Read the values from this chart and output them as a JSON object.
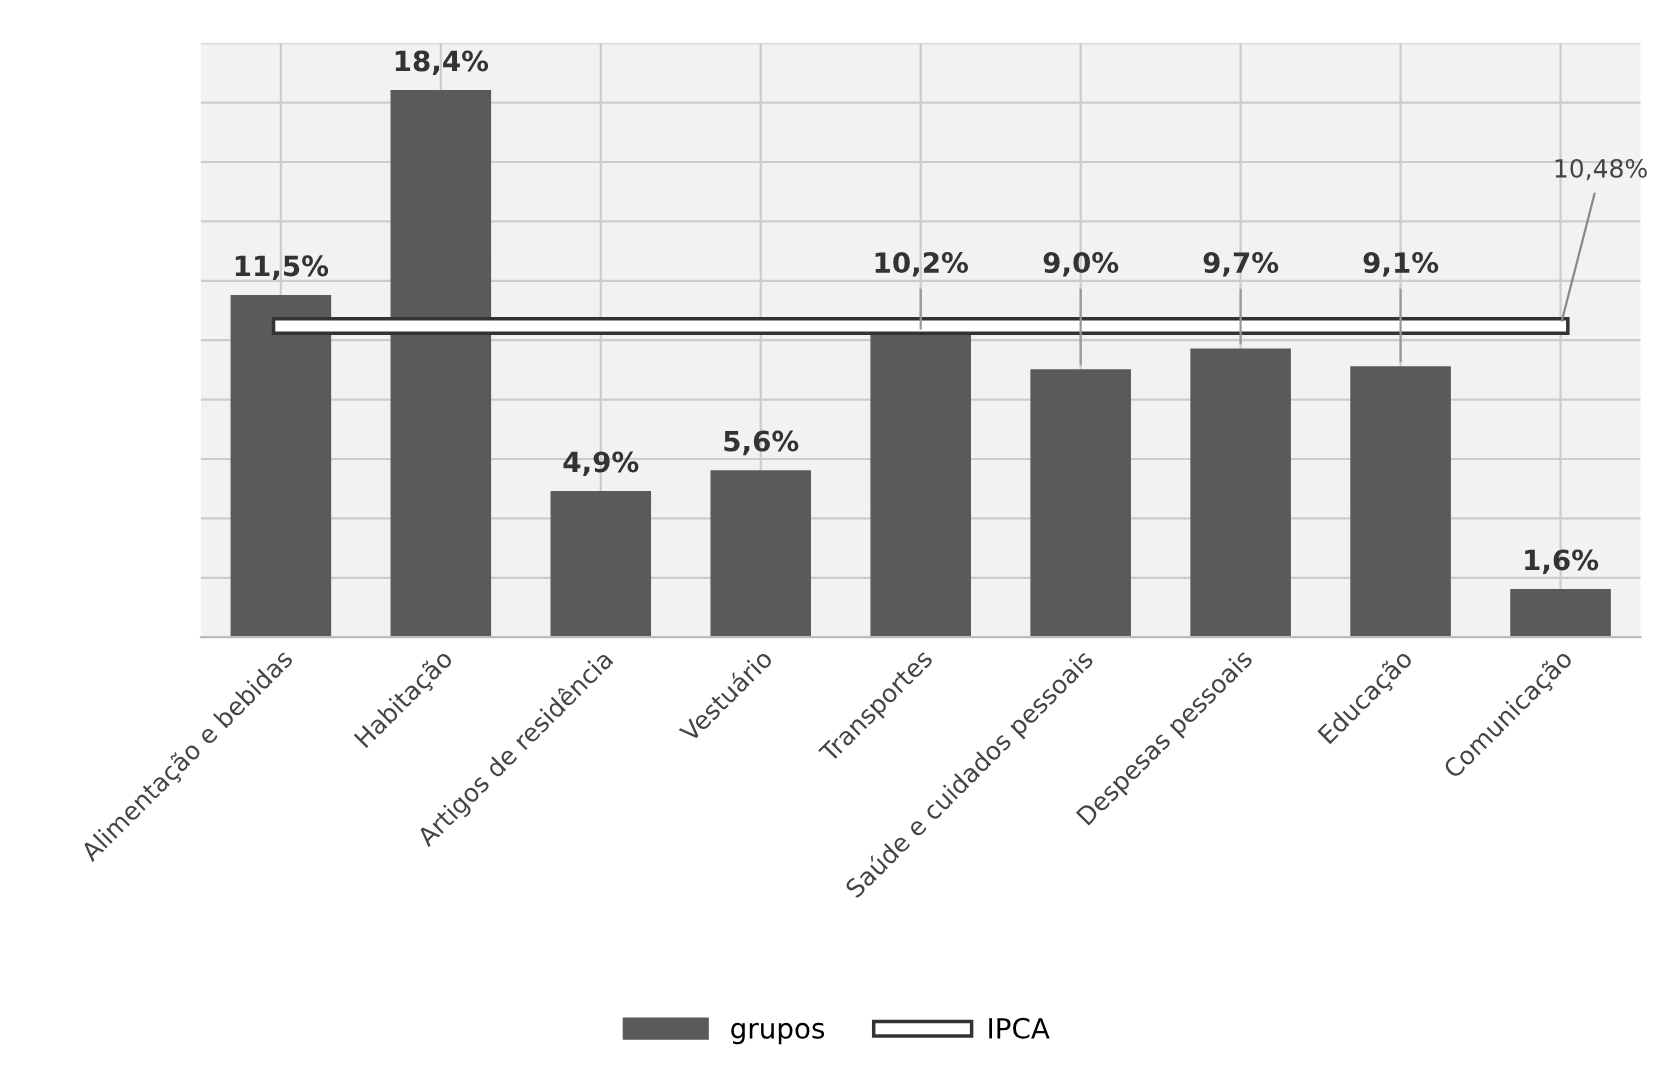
{
  "chart_data": {
    "type": "bar",
    "categories": [
      "Alimentação e bebidas",
      "Habitação",
      "Artigos de residência",
      "Vestuário",
      "Transportes",
      "Saúde e cuidados pessoais",
      "Despesas pessoais",
      "Educação",
      "Comunicação"
    ],
    "series": [
      {
        "name": "grupos",
        "color": "#5a5a5a",
        "values": [
          11.5,
          18.4,
          4.9,
          5.6,
          10.2,
          9.0,
          9.7,
          9.1,
          1.6
        ],
        "value_labels": [
          "11,5%",
          "18,4%",
          "4,9%",
          "5,6%",
          "10,2%",
          "9,0%",
          "9,7%",
          "9,1%",
          "1,6%"
        ]
      },
      {
        "name": "IPCA",
        "type": "line",
        "color": "#ffffff",
        "values": [
          10.48,
          10.48,
          10.48,
          10.48,
          10.48,
          10.48,
          10.48,
          10.48,
          10.48
        ],
        "value_labels": [
          null,
          null,
          null,
          null,
          null,
          null,
          null,
          null,
          "10,48%"
        ]
      }
    ],
    "ylim": [
      0,
      20
    ],
    "yticks": [
      {
        "value": 0,
        "label": null
      },
      {
        "value": 2,
        "label": null
      },
      {
        "value": 4,
        "label": null
      },
      {
        "value": 6,
        "label": null
      },
      {
        "value": 8,
        "label": null
      },
      {
        "value": 10,
        "label": null
      },
      {
        "value": 12,
        "label": null
      },
      {
        "value": 14,
        "label": null
      },
      {
        "value": 16,
        "label": null
      },
      {
        "value": 18,
        "label": null
      },
      {
        "value": 20,
        "label": null
      }
    ],
    "grid": true,
    "legend": "bottom"
  }
}
